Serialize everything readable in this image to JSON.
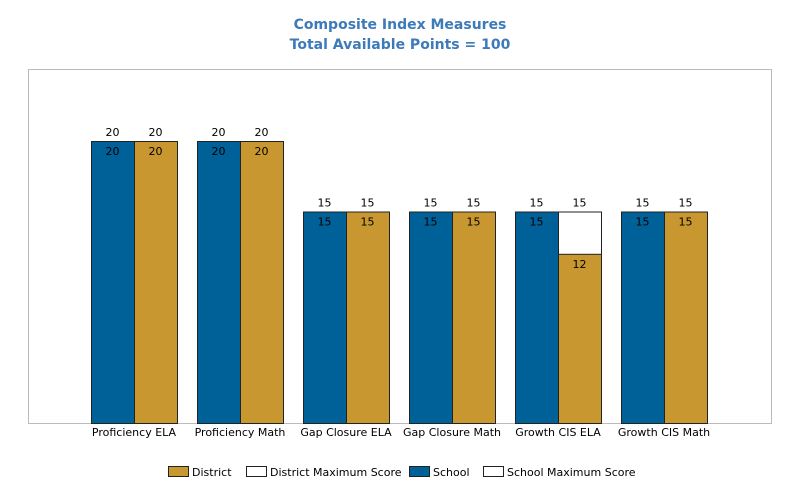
{
  "colors": {
    "title": "#3d7ab8",
    "school": "#006098",
    "district": "#c9972f",
    "max_fill": "#ffffff",
    "bar_stroke": "#222222",
    "plot_border": "#bbbbbb"
  },
  "chart_data": {
    "type": "bar",
    "title": "Composite Index Measures",
    "subtitle": "Total Available Points = 100",
    "categories": [
      "Proficiency ELA",
      "Proficiency Math",
      "Gap Closure ELA",
      "Gap Closure Math",
      "Growth CIS ELA",
      "Growth CIS Math"
    ],
    "series": [
      {
        "name": "School",
        "values": [
          20,
          20,
          15,
          15,
          15,
          15
        ],
        "max": [
          20,
          20,
          15,
          15,
          15,
          15
        ]
      },
      {
        "name": "District",
        "values": [
          20,
          20,
          15,
          15,
          12,
          15
        ],
        "max": [
          20,
          20,
          15,
          15,
          15,
          15
        ]
      }
    ],
    "ylim": [
      0,
      25
    ],
    "grid": false,
    "legend_position": "bottom",
    "legend": [
      {
        "label": "District",
        "swatch": "district"
      },
      {
        "label": "District Maximum Score",
        "swatch": "max_fill"
      },
      {
        "label": "School",
        "swatch": "school"
      },
      {
        "label": "School Maximum Score",
        "swatch": "max_fill"
      }
    ]
  }
}
